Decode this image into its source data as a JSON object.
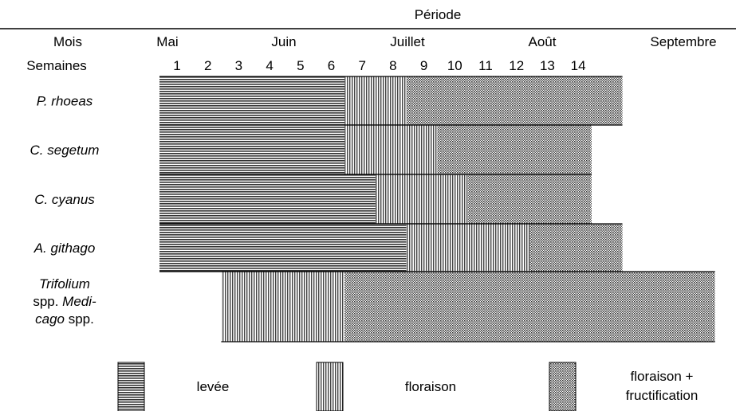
{
  "chart_data": {
    "type": "gantt",
    "header_title": "Période",
    "row_label_months": "Mois",
    "row_label_weeks": "Semaines",
    "months": [
      "Mai",
      "Juin",
      "Juillet",
      "Août",
      "Septembre"
    ],
    "weeks": [
      "1",
      "2",
      "3",
      "4",
      "5",
      "6",
      "7",
      "8",
      "9",
      "10",
      "11",
      "12",
      "13",
      "14"
    ],
    "week_range": [
      1,
      16
    ],
    "phases": {
      "levee": "levée",
      "floraison": "floraison",
      "floraison_fructification": "floraison + fructification"
    },
    "species": [
      {
        "label": [
          {
            "text": "P. rhoeas",
            "italic": true
          }
        ],
        "segments": [
          {
            "phase": "levee",
            "start": 1,
            "end": 7
          },
          {
            "phase": "floraison",
            "start": 7,
            "end": 9
          },
          {
            "phase": "floraison_fructification",
            "start": 9,
            "end": 16
          }
        ]
      },
      {
        "label": [
          {
            "text": "C. segetum",
            "italic": true
          }
        ],
        "segments": [
          {
            "phase": "levee",
            "start": 1,
            "end": 7
          },
          {
            "phase": "floraison",
            "start": 7,
            "end": 10
          },
          {
            "phase": "floraison_fructification",
            "start": 10,
            "end": 15
          }
        ]
      },
      {
        "label": [
          {
            "text": "C. cyanus",
            "italic": true
          }
        ],
        "segments": [
          {
            "phase": "levee",
            "start": 1,
            "end": 8
          },
          {
            "phase": "floraison",
            "start": 8,
            "end": 11
          },
          {
            "phase": "floraison_fructification",
            "start": 11,
            "end": 15
          }
        ]
      },
      {
        "label": [
          {
            "text": "A. githago",
            "italic": true
          }
        ],
        "segments": [
          {
            "phase": "levee",
            "start": 1,
            "end": 9
          },
          {
            "phase": "floraison",
            "start": 9,
            "end": 13
          },
          {
            "phase": "floraison_fructification",
            "start": 13,
            "end": 16
          }
        ]
      },
      {
        "label": [
          {
            "line": 0,
            "text": "Trifolium",
            "italic": true
          },
          {
            "line": 1,
            "text": "spp. ",
            "italic": false
          },
          {
            "line": 1,
            "text": "Medi-",
            "italic": true
          },
          {
            "line": 2,
            "text": "cago",
            "italic": true
          },
          {
            "line": 2,
            "text": " spp.",
            "italic": false
          }
        ],
        "segments": [
          {
            "phase": "floraison",
            "start": 3,
            "end": 7
          },
          {
            "phase": "floraison_fructification",
            "start": 7,
            "end": 19
          }
        ]
      }
    ]
  }
}
